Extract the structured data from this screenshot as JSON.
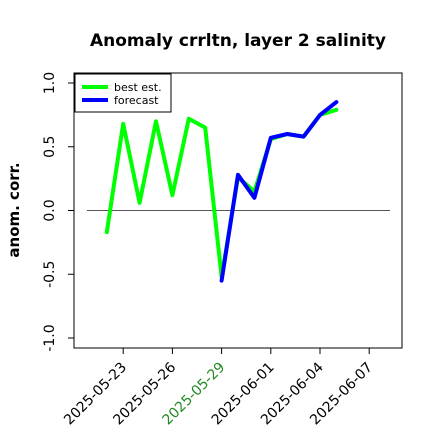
{
  "chart_data": {
    "type": "line",
    "title": "Anomaly crrltn, layer 2 salinity",
    "xlabel": "",
    "ylabel": "anom. corr.",
    "ylim": [
      -1.0,
      1.0
    ],
    "xlim": [
      "2025-05-20",
      "2025-06-09"
    ],
    "yticks": [
      -1.0,
      -0.5,
      0.0,
      0.5,
      1.0
    ],
    "ytick_labels": [
      "-1.0",
      "-0.5",
      "0.0",
      "0.5",
      "1.0"
    ],
    "xticks": [
      "2025-05-23",
      "2025-05-26",
      "2025-05-29",
      "2025-06-01",
      "2025-06-04",
      "2025-06-07"
    ],
    "xtick_colors": [
      "#000000",
      "#000000",
      "#228B22",
      "#000000",
      "#000000",
      "#000000"
    ],
    "reference_line": 0.0,
    "reference_line_color": "#555555",
    "legend": {
      "position": "top-left"
    },
    "grid": false,
    "series": [
      {
        "name": "best est.",
        "color": "#00ff00",
        "x": [
          "2025-05-22",
          "2025-05-23",
          "2025-05-24",
          "2025-05-25",
          "2025-05-26",
          "2025-05-27",
          "2025-05-28",
          "2025-05-29",
          "2025-05-30",
          "2025-05-31",
          "2025-06-01",
          "2025-06-02",
          "2025-06-03",
          "2025-06-04",
          "2025-06-05"
        ],
        "values": [
          -0.17,
          0.68,
          0.06,
          0.7,
          0.12,
          0.72,
          0.65,
          -0.52,
          0.26,
          0.15,
          0.56,
          0.6,
          0.58,
          0.75,
          0.79
        ]
      },
      {
        "name": "forecast",
        "color": "#0000ff",
        "x": [
          "2025-05-29",
          "2025-05-30",
          "2025-05-31",
          "2025-06-01",
          "2025-06-02",
          "2025-06-03",
          "2025-06-04",
          "2025-06-05"
        ],
        "values": [
          -0.55,
          0.28,
          0.1,
          0.57,
          0.6,
          0.58,
          0.75,
          0.85
        ]
      }
    ]
  }
}
